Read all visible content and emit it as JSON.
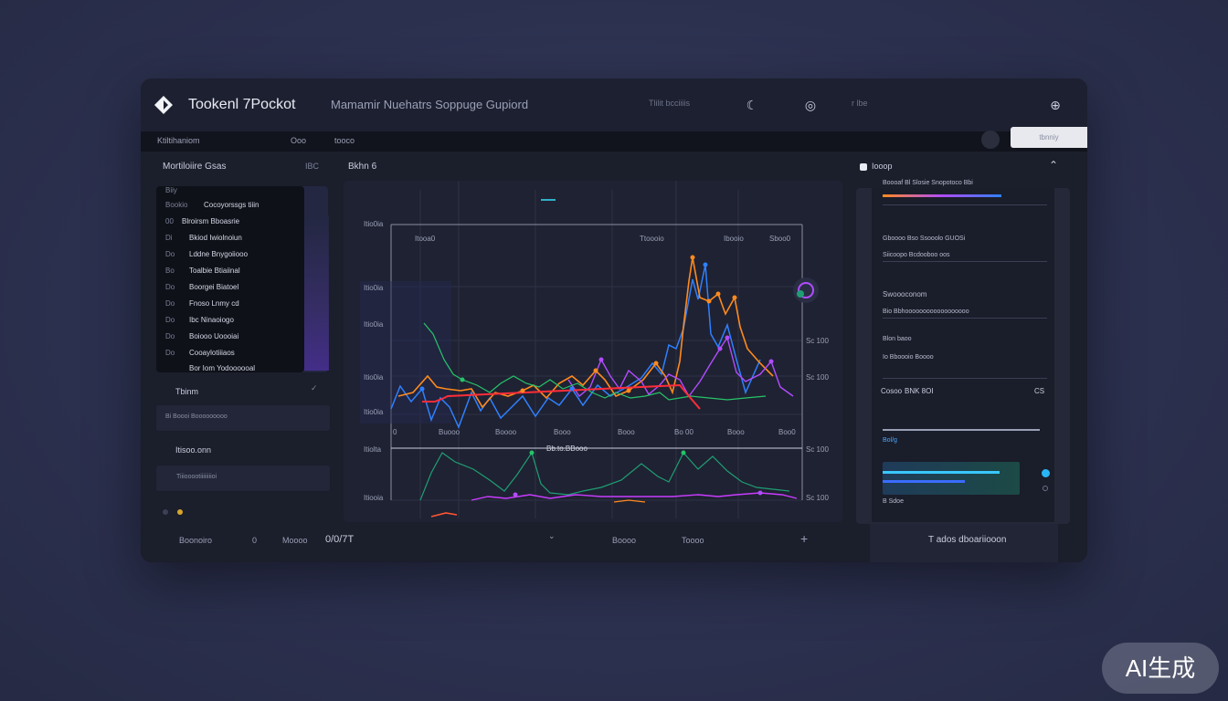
{
  "app": {
    "title": "Tookenl 7Pockot",
    "subtitle": "Mamamir Nuehatrs Soppuge  Gupiord",
    "header_small_1": "Tlilit bcciiiis",
    "header_small_2": "r  lbe"
  },
  "toolbar": {
    "item_1": "Ktiltihaniom",
    "item_2": "Ooo",
    "item_3": "tooco",
    "right_button": "tbnniy"
  },
  "left_panel": {
    "title": "Mortiloiire Gsas",
    "title_right": "IBC",
    "list_header": "Biiy",
    "items": [
      {
        "num": "Bookio",
        "label": "Cocoyorssgs tiiin"
      },
      {
        "num": "00",
        "label": "Blroirsm Bboasrie"
      },
      {
        "num": "Di",
        "label": "Bkiod Iwiolnoiun"
      },
      {
        "num": "Do",
        "label": "Lddne Bnygoiiooo"
      },
      {
        "num": "Bo",
        "label": "Toalbie Btiaiinal"
      },
      {
        "num": "Do",
        "label": "Boorgei Biatoel"
      },
      {
        "num": "Do",
        "label": "Fnoso Lnmy cd"
      },
      {
        "num": "Do",
        "label": "Ibc Ninaoiogo"
      },
      {
        "num": "Do",
        "label": "Boiooo Uoooiai"
      },
      {
        "num": "Do",
        "label": "Cooaylotiiiaos"
      },
      {
        "num": "",
        "label": "Bor Iom Yodoooooal"
      }
    ],
    "section_1": "Tbinm",
    "card_1_text": "Bi  Boooi Booooooooo",
    "section_2": "Itisoo.onn",
    "card_2_text": "Tiiiooootiiiiiiiioi"
  },
  "chart_panel": {
    "title": "Bkhn 6",
    "y_labels_left": [
      "Itio0ia",
      "Itio0ia",
      "Itio0ia",
      "Itio0ia",
      "Itio0ia",
      "Itiolta",
      "Itiooia"
    ],
    "y_labels_right": [
      "Sc 100",
      "Sc 100",
      "Sc 100",
      "Sc 100"
    ],
    "top_labels": [
      "Itooa0",
      "Ttoooio",
      "Ibooio",
      "Sboo0"
    ],
    "x_labels": [
      "0",
      "Buooo",
      "Boooo",
      "Booo",
      "Booo",
      "Bo 00",
      "Booo",
      "Boo0"
    ],
    "mid_label": "Bb.to.BBooo"
  },
  "statusbar": {
    "item_1": "Boonoiro",
    "item_2": "0",
    "item_3": "Moooo",
    "item_4": "0/0/7T",
    "item_5": "Boooo",
    "item_6": "Toooo",
    "right_text": "T ados dboariiooon"
  },
  "right_panel": {
    "title": "Iooop",
    "row_1": "Boooaf Bl Slosie Snopotoco Bbi",
    "row_2": "Gboooo Bso Ssooolo GUOSi",
    "row_3": "Siicoopo Bcdooboo oos",
    "row_4": "Swoooconom",
    "row_5": "Bio Bbhoooooooooooooooooo",
    "row_6": "Blon baoo",
    "row_7": "Io Bboooio Boooo",
    "row_8_left": "Cosoo",
    "row_8_mid": "BNK 8OI",
    "row_8_right": "CS",
    "row_9": "Bol/g",
    "row_10": "B Sdoe"
  },
  "watermark": "AI生成"
}
